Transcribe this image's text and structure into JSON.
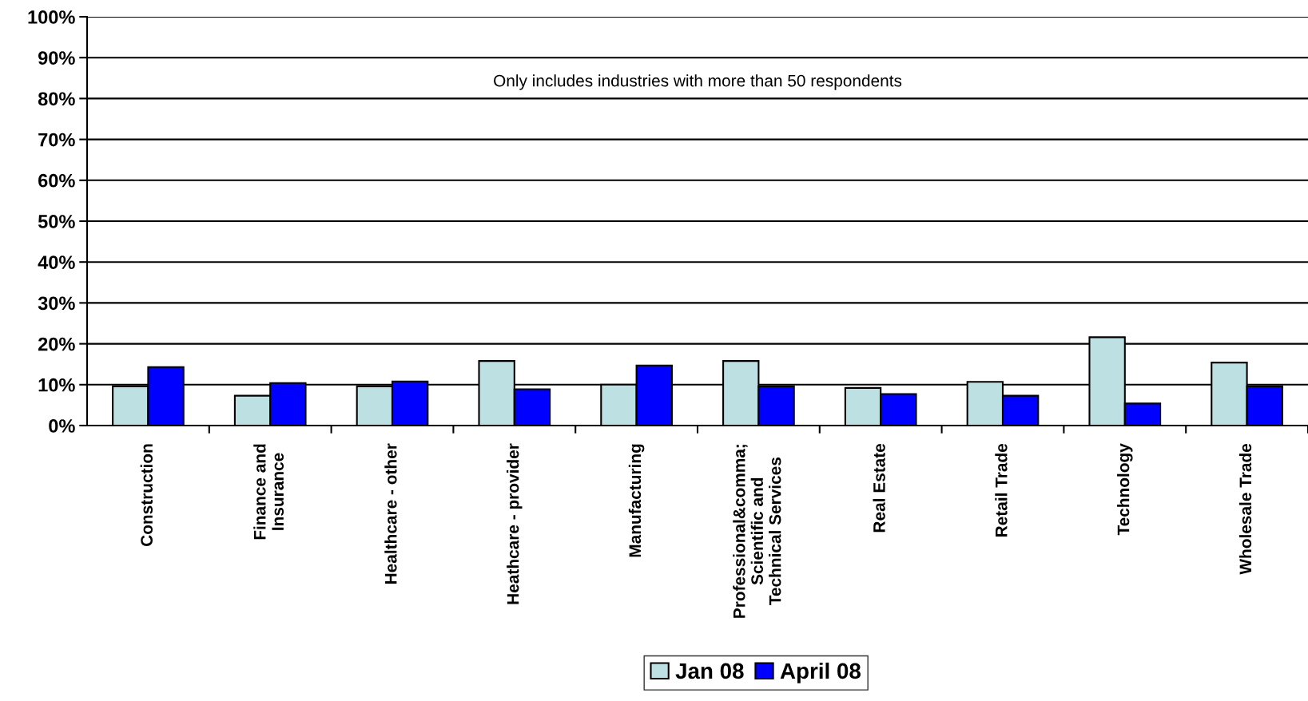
{
  "chart_data": {
    "type": "bar",
    "categories": [
      "Construction",
      "Finance and\nInsurance",
      "Healthcare - other",
      "Heathcare - provider",
      "Manufacturing",
      "Professional&comma;\nScientific and\nTechnical Services",
      "Real Estate",
      "Retail Trade",
      "Technology",
      "Wholesale Trade"
    ],
    "series": [
      {
        "name": "Jan 08",
        "color": "#bde0e3",
        "values": [
          9.6,
          7.3,
          9.6,
          15.8,
          10.0,
          15.8,
          9.2,
          10.7,
          21.6,
          15.4
        ]
      },
      {
        "name": "April 08",
        "color": "#0000ff",
        "values": [
          14.3,
          10.4,
          10.8,
          8.9,
          14.7,
          9.6,
          7.7,
          7.3,
          5.4,
          9.6
        ]
      }
    ],
    "ylim": [
      0,
      100
    ],
    "yticks": [
      {
        "value": 0,
        "label": "0%"
      },
      {
        "value": 10,
        "label": "10%"
      },
      {
        "value": 20,
        "label": "20%"
      },
      {
        "value": 30,
        "label": "30%"
      },
      {
        "value": 40,
        "label": "40%"
      },
      {
        "value": 50,
        "label": "50%"
      },
      {
        "value": 60,
        "label": "60%"
      },
      {
        "value": 70,
        "label": "70%"
      },
      {
        "value": 80,
        "label": "80%"
      },
      {
        "value": 90,
        "label": "90%"
      },
      {
        "value": 100,
        "label": "100%"
      }
    ],
    "grid": "y",
    "legend": "bottom",
    "annotations": [
      "Only includes industries with more than 50 respondents"
    ]
  }
}
